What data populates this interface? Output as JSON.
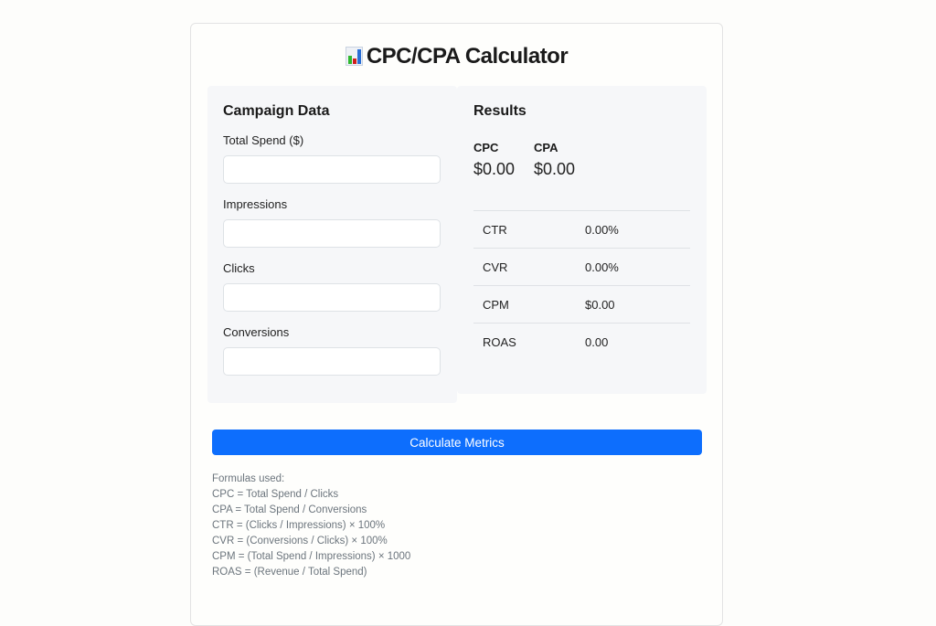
{
  "title": "CPC/CPA Calculator",
  "colors": {
    "accent": "#0d6efd",
    "panel": "#f6f7f9"
  },
  "campaign": {
    "heading": "Campaign Data",
    "fields": [
      {
        "label": "Total Spend ($)",
        "value": ""
      },
      {
        "label": "Impressions",
        "value": ""
      },
      {
        "label": "Clicks",
        "value": ""
      },
      {
        "label": "Conversions",
        "value": ""
      }
    ]
  },
  "results": {
    "heading": "Results",
    "cpc": {
      "label": "CPC",
      "value": "$0.00"
    },
    "cpa": {
      "label": "CPA",
      "value": "$0.00"
    },
    "rows": [
      {
        "label": "CTR",
        "value": "0.00%"
      },
      {
        "label": "CVR",
        "value": "0.00%"
      },
      {
        "label": "CPM",
        "value": "$0.00"
      },
      {
        "label": "ROAS",
        "value": "0.00"
      }
    ]
  },
  "button": "Calculate Metrics",
  "formulas": {
    "heading": "Formulas used:",
    "lines": [
      "CPC = Total Spend / Clicks",
      "CPA = Total Spend / Conversions",
      "CTR = (Clicks / Impressions) × 100%",
      "CVR = (Conversions / Clicks) × 100%",
      "CPM = (Total Spend / Impressions) × 1000",
      "ROAS = (Revenue / Total Spend)"
    ]
  }
}
